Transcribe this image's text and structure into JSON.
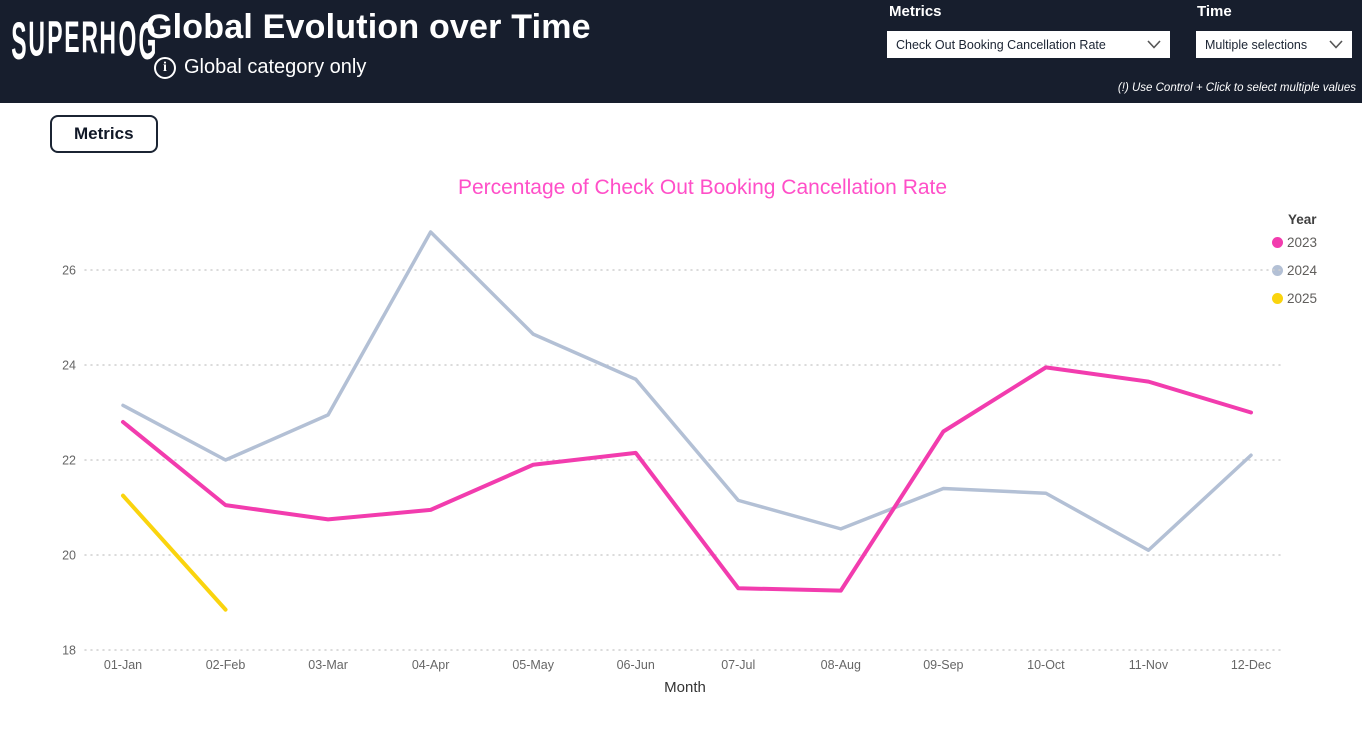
{
  "header": {
    "logo": "SUPERHOG",
    "title": "Global Evolution over Time",
    "subtitle": "Global category only",
    "info_glyph": "i",
    "metrics_label": "Metrics",
    "metrics_value": "Check Out Booking Cancellation Rate",
    "time_label": "Time",
    "time_value": "Multiple selections",
    "hint": "(!) Use Control + Click to select multiple values"
  },
  "toolbar": {
    "metrics_button": "Metrics"
  },
  "colors": {
    "header_bg": "#171E2D",
    "chart_title": "#FF4FC8",
    "grid": "#CFCFCF",
    "axis_text": "#666666",
    "series_2023": "#F23CAE",
    "series_2024": "#B3C0D5",
    "series_2025": "#FAD40E"
  },
  "chart_data": {
    "type": "line",
    "title": "Percentage of Check Out Booking Cancellation Rate",
    "xlabel": "Month",
    "ylabel": "",
    "legend_title": "Year",
    "legend_position": "top-right",
    "grid": true,
    "ylim": [
      18,
      27
    ],
    "y_ticks": [
      18,
      20,
      22,
      24,
      26
    ],
    "categories": [
      "01-Jan",
      "02-Feb",
      "03-Mar",
      "04-Apr",
      "05-May",
      "06-Jun",
      "07-Jul",
      "08-Aug",
      "09-Sep",
      "10-Oct",
      "11-Nov",
      "12-Dec"
    ],
    "series": [
      {
        "name": "2023",
        "color": "#F23CAE",
        "values": [
          22.8,
          21.05,
          20.75,
          20.95,
          21.9,
          22.15,
          19.3,
          19.25,
          22.6,
          23.95,
          23.65,
          23.0
        ]
      },
      {
        "name": "2024",
        "color": "#B3C0D5",
        "values": [
          23.15,
          22.0,
          22.95,
          26.8,
          24.65,
          23.7,
          21.15,
          20.55,
          21.4,
          21.3,
          20.1,
          22.1
        ]
      },
      {
        "name": "2025",
        "color": "#FAD40E",
        "values": [
          21.25,
          18.85
        ]
      }
    ]
  }
}
